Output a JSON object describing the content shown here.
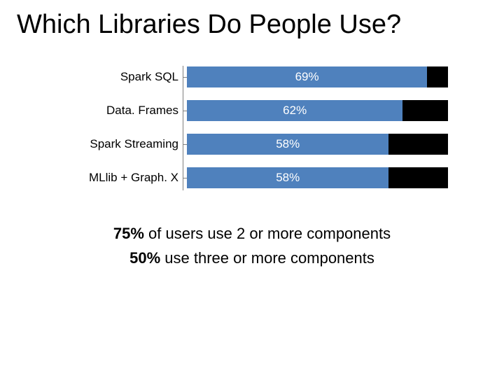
{
  "title": "Which Libraries Do People Use?",
  "chart": {
    "type": "bar-horizontal",
    "max_value": 75,
    "bar_color": "#4f81bd",
    "track_color": "#000000",
    "axis_color": "#7f7f7f",
    "value_text_color": "#ffffff",
    "label_fontsize": 17,
    "value_fontsize": 17,
    "bars": [
      {
        "label": "Spark SQL",
        "value": 69,
        "value_label": "69%"
      },
      {
        "label": "Data. Frames",
        "value": 62,
        "value_label": "62%"
      },
      {
        "label": "Spark Streaming",
        "value": 58,
        "value_label": "58%"
      },
      {
        "label": "MLlib + Graph. X",
        "value": 58,
        "value_label": "58%"
      }
    ]
  },
  "footnotes": {
    "line1_bold": "75%",
    "line1_rest": " of users use 2 or more components",
    "line2_bold": "50%",
    "line2_rest": " use three or more components"
  }
}
